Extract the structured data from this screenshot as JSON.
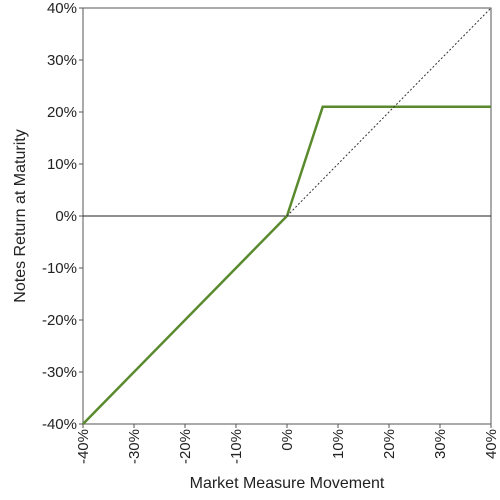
{
  "chart_data": {
    "type": "line",
    "title": "",
    "xlabel": "Market Measure Movement",
    "ylabel": "Notes Return at Maturity",
    "xlim": [
      -40,
      40
    ],
    "ylim": [
      -40,
      40
    ],
    "x_ticks": [
      "-40%",
      "-30%",
      "-20%",
      "-10%",
      "0%",
      "10%",
      "20%",
      "30%",
      "40%"
    ],
    "y_ticks": [
      "40%",
      "30%",
      "20%",
      "10%",
      "0%",
      "-10%",
      "-20%",
      "-30%",
      "-40%"
    ],
    "x_tick_values": [
      -40,
      -30,
      -20,
      -10,
      0,
      10,
      20,
      30,
      40
    ],
    "y_tick_values": [
      40,
      30,
      20,
      10,
      0,
      -10,
      -20,
      -30,
      -40
    ],
    "grid": false,
    "series": [
      {
        "style": "solid",
        "color": "#5a8a2e",
        "x": [
          -40,
          0,
          7,
          40
        ],
        "y": [
          -40,
          0,
          21,
          21
        ]
      },
      {
        "style": "dotted",
        "color": "#333333",
        "x": [
          0,
          40
        ],
        "y": [
          0,
          40
        ]
      }
    ],
    "reference_lines": [
      {
        "axis": "y",
        "value": 0
      }
    ]
  }
}
